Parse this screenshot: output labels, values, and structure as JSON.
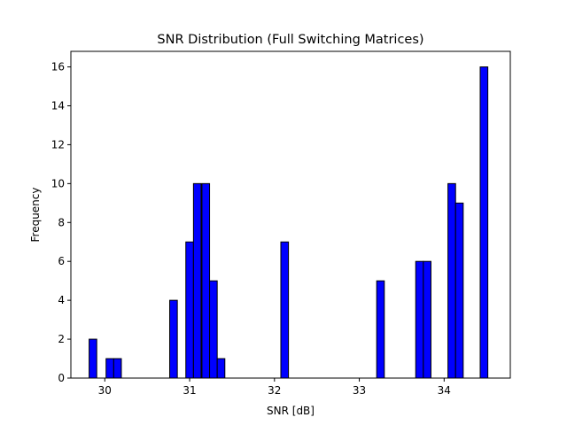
{
  "chart_data": {
    "type": "bar",
    "title": "SNR Distribution (Full Switching Matrices)",
    "xlabel": "SNR [dB]",
    "ylabel": "Frequency",
    "xlim": [
      29.6,
      34.78
    ],
    "ylim": [
      0,
      16.8
    ],
    "xticks": [
      30,
      31,
      32,
      33,
      34
    ],
    "yticks": [
      0,
      2,
      4,
      6,
      8,
      10,
      12,
      14,
      16
    ],
    "bin_width": 0.09,
    "bar_color": "#0000ff",
    "edge_color": "#000000",
    "grid": false,
    "bins": [
      {
        "x": 29.86,
        "value": 2
      },
      {
        "x": 30.06,
        "value": 1
      },
      {
        "x": 30.15,
        "value": 1
      },
      {
        "x": 30.81,
        "value": 4
      },
      {
        "x": 31.0,
        "value": 7
      },
      {
        "x": 31.09,
        "value": 10
      },
      {
        "x": 31.19,
        "value": 10
      },
      {
        "x": 31.28,
        "value": 5
      },
      {
        "x": 31.37,
        "value": 1
      },
      {
        "x": 32.12,
        "value": 7
      },
      {
        "x": 33.25,
        "value": 5
      },
      {
        "x": 33.71,
        "value": 6
      },
      {
        "x": 33.8,
        "value": 6
      },
      {
        "x": 34.09,
        "value": 10
      },
      {
        "x": 34.18,
        "value": 9
      },
      {
        "x": 34.47,
        "value": 16
      }
    ]
  }
}
